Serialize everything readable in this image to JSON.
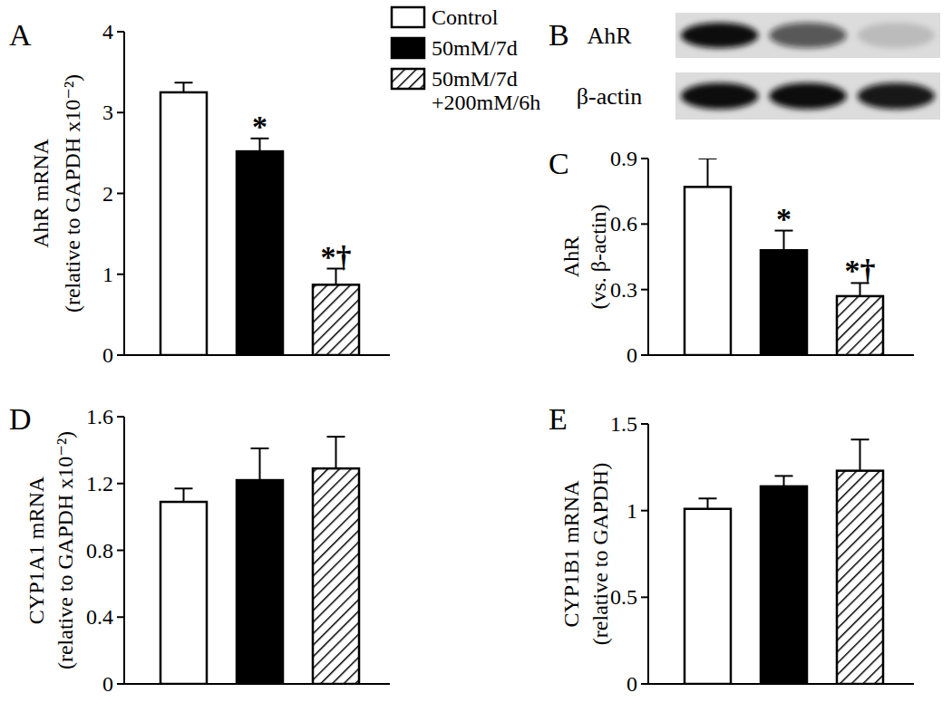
{
  "chart_data": [
    {
      "type": "bar",
      "title": "A",
      "ylabel": [
        "AhR mRNA",
        "(relative to GAPDH x10⁻²)"
      ],
      "ylim": [
        0,
        4
      ],
      "yticks": [
        0,
        1,
        2,
        3,
        4
      ],
      "legend": "top right",
      "series": [
        {
          "name": "Control",
          "color": "#ffffff",
          "values": [
            3.25
          ],
          "errors": [
            0.12
          ]
        },
        {
          "name": "50mM/7d",
          "color": "#000000",
          "values": [
            2.52
          ],
          "errors": [
            0.16
          ]
        },
        {
          "name": "50mM/7d +200mM/6h",
          "color": "#ffffff",
          "marker": "hatch",
          "values": [
            0.87
          ],
          "errors": [
            0.2
          ]
        }
      ],
      "annotations": [
        null,
        "*",
        "*†"
      ]
    },
    {
      "type": "blot",
      "title": "B",
      "rows": [
        {
          "label": "AhR",
          "bands": [
            1,
            0.65,
            0.15
          ]
        },
        {
          "label": "β-actin",
          "bands": [
            1,
            1,
            0.95
          ]
        }
      ]
    },
    {
      "type": "bar",
      "title": "C",
      "ylabel": [
        "AhR",
        "(vs. β-actin)"
      ],
      "ylim": [
        0,
        0.9
      ],
      "yticks": [
        0,
        0.3,
        0.6,
        0.9
      ],
      "series": [
        {
          "color": "#ffffff",
          "values": [
            0.77
          ],
          "errors": [
            0.13
          ]
        },
        {
          "color": "#000000",
          "values": [
            0.48
          ],
          "errors": [
            0.09
          ]
        },
        {
          "color": "#ffffff",
          "marker": "hatch",
          "values": [
            0.27
          ],
          "errors": [
            0.06
          ]
        }
      ],
      "annotations": [
        null,
        "*",
        "*†"
      ]
    },
    {
      "type": "bar",
      "title": "D",
      "ylabel": [
        "CYP1A1 mRNA",
        "(relative to GAPDH x10⁻²)"
      ],
      "ylim": [
        0,
        1.6
      ],
      "yticks": [
        0,
        0.4,
        0.8,
        1.2,
        1.6
      ],
      "series": [
        {
          "color": "#ffffff",
          "values": [
            1.09
          ],
          "errors": [
            0.08
          ]
        },
        {
          "color": "#000000",
          "values": [
            1.22
          ],
          "errors": [
            0.19
          ]
        },
        {
          "color": "#ffffff",
          "marker": "hatch",
          "values": [
            1.29
          ],
          "errors": [
            0.19
          ]
        }
      ]
    },
    {
      "type": "bar",
      "title": "E",
      "ylabel": [
        "CYP1B1 mRNA",
        "(relative to GAPDH)"
      ],
      "ylim": [
        0,
        1.5
      ],
      "yticks": [
        0,
        0.5,
        1,
        1.5
      ],
      "series": [
        {
          "color": "#ffffff",
          "values": [
            1.01
          ],
          "errors": [
            0.06
          ]
        },
        {
          "color": "#000000",
          "values": [
            1.14
          ],
          "errors": [
            0.06
          ]
        },
        {
          "color": "#ffffff",
          "marker": "hatch",
          "values": [
            1.23
          ],
          "errors": [
            0.18
          ]
        }
      ]
    }
  ]
}
